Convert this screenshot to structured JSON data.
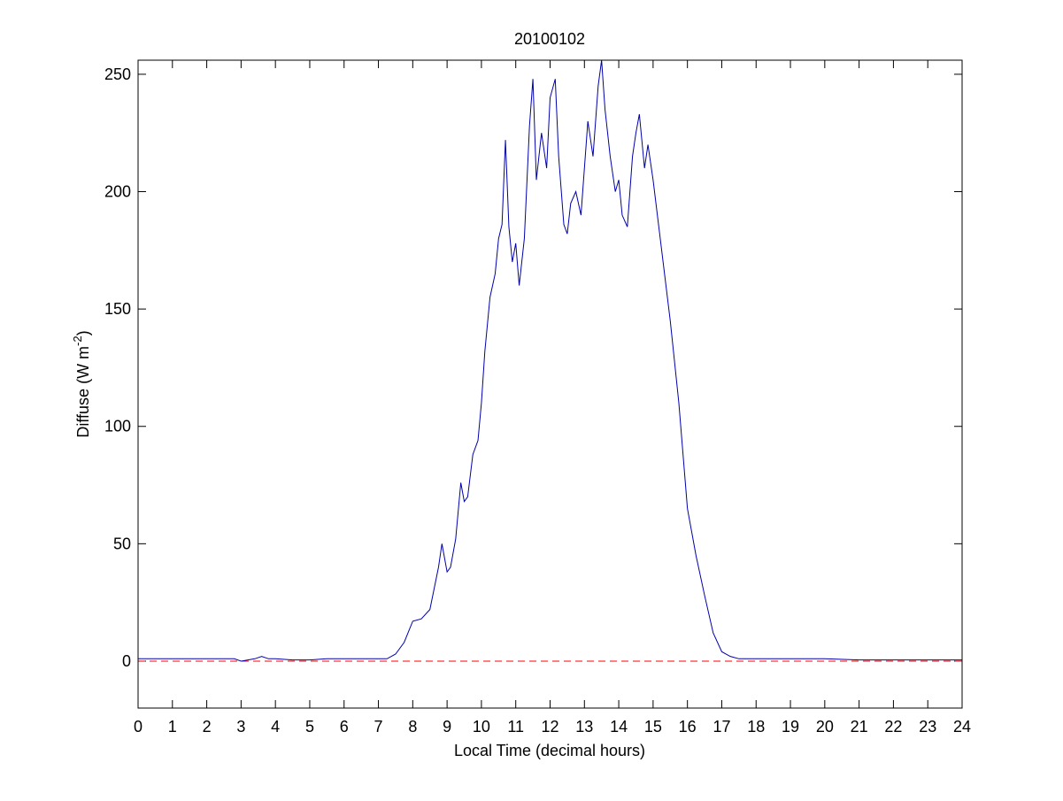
{
  "chart_data": {
    "type": "line",
    "title": "20100102",
    "xlabel": "Local Time (decimal hours)",
    "ylabel": {
      "text": "Diffuse (W m",
      "superscript": "-2",
      "suffix": ")"
    },
    "xlim": [
      0,
      24
    ],
    "xticks": [
      0,
      1,
      2,
      3,
      4,
      5,
      6,
      7,
      8,
      9,
      10,
      11,
      12,
      13,
      14,
      15,
      16,
      17,
      18,
      19,
      20,
      21,
      22,
      23,
      24
    ],
    "ylim": [
      -20,
      256
    ],
    "yticks": [
      0,
      50,
      100,
      150,
      200,
      250
    ],
    "reference_line": {
      "value": 0,
      "color": "#ff0000",
      "style": "dashed"
    },
    "series": [
      {
        "color": "#0000aa",
        "x": [
          0,
          0.5,
          1,
          1.5,
          2,
          2.5,
          2.8,
          3,
          3.2,
          3.4,
          3.6,
          3.8,
          4,
          4.5,
          5,
          5.5,
          6,
          6.5,
          7,
          7.25,
          7.5,
          7.75,
          8,
          8.25,
          8.5,
          8.75,
          8.85,
          9,
          9.1,
          9.25,
          9.4,
          9.5,
          9.6,
          9.75,
          9.9,
          10,
          10.1,
          10.25,
          10.4,
          10.5,
          10.6,
          10.7,
          10.8,
          10.9,
          11,
          11.1,
          11.25,
          11.4,
          11.5,
          11.6,
          11.75,
          11.9,
          12,
          12.15,
          12.25,
          12.4,
          12.5,
          12.6,
          12.75,
          12.9,
          13,
          13.1,
          13.25,
          13.4,
          13.5,
          13.6,
          13.75,
          13.9,
          14,
          14.1,
          14.25,
          14.4,
          14.5,
          14.6,
          14.75,
          14.85,
          15,
          15.25,
          15.5,
          15.75,
          16,
          16.25,
          16.5,
          16.75,
          17,
          17.25,
          17.5,
          18,
          19,
          20,
          21,
          22,
          23,
          24
        ],
        "values": [
          1,
          1,
          1,
          1,
          1,
          1,
          1,
          0,
          0.5,
          1,
          2,
          1,
          1,
          0.5,
          0.5,
          1,
          1,
          1,
          1,
          1,
          3,
          8,
          17,
          18,
          22,
          40,
          50,
          38,
          40,
          52,
          76,
          68,
          70,
          88,
          94,
          110,
          132,
          155,
          165,
          180,
          186,
          222,
          185,
          170,
          178,
          160,
          180,
          228,
          248,
          205,
          225,
          210,
          240,
          248,
          215,
          186,
          182,
          195,
          200,
          190,
          210,
          230,
          215,
          245,
          256,
          235,
          215,
          200,
          205,
          190,
          185,
          215,
          225,
          233,
          210,
          220,
          205,
          175,
          145,
          110,
          65,
          45,
          28,
          12,
          4,
          2,
          1,
          1,
          1,
          1,
          0.5,
          0.5,
          0.5,
          0.5
        ]
      }
    ]
  }
}
